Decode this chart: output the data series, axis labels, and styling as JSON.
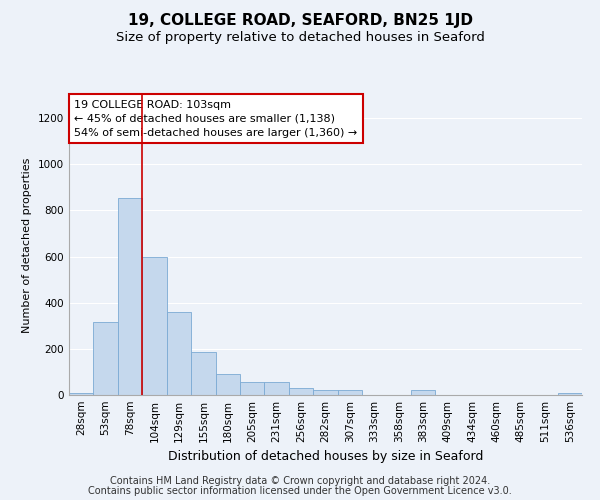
{
  "title1": "19, COLLEGE ROAD, SEAFORD, BN25 1JD",
  "title2": "Size of property relative to detached houses in Seaford",
  "xlabel": "Distribution of detached houses by size in Seaford",
  "ylabel": "Number of detached properties",
  "categories": [
    "28sqm",
    "53sqm",
    "78sqm",
    "104sqm",
    "129sqm",
    "155sqm",
    "180sqm",
    "205sqm",
    "231sqm",
    "256sqm",
    "282sqm",
    "307sqm",
    "333sqm",
    "358sqm",
    "383sqm",
    "409sqm",
    "434sqm",
    "460sqm",
    "485sqm",
    "511sqm",
    "536sqm"
  ],
  "values": [
    10,
    315,
    855,
    600,
    360,
    185,
    90,
    55,
    55,
    30,
    20,
    20,
    0,
    0,
    20,
    0,
    0,
    0,
    0,
    0,
    10
  ],
  "bar_color": "#c5d8ed",
  "bar_edge_color": "#7baad4",
  "vline_position": 2.5,
  "vline_color": "#cc0000",
  "annotation_text": "19 COLLEGE ROAD: 103sqm\n← 45% of detached houses are smaller (1,138)\n54% of semi-detached houses are larger (1,360) →",
  "annotation_box_color": "#ffffff",
  "annotation_box_edge": "#cc0000",
  "ylim": [
    0,
    1300
  ],
  "yticks": [
    0,
    200,
    400,
    600,
    800,
    1000,
    1200
  ],
  "background_color": "#edf2f9",
  "plot_bg_color": "#edf2f9",
  "footer1": "Contains HM Land Registry data © Crown copyright and database right 2024.",
  "footer2": "Contains public sector information licensed under the Open Government Licence v3.0.",
  "title1_fontsize": 11,
  "title2_fontsize": 9.5,
  "xlabel_fontsize": 9,
  "ylabel_fontsize": 8,
  "tick_fontsize": 7.5,
  "annotation_fontsize": 8,
  "footer_fontsize": 7
}
